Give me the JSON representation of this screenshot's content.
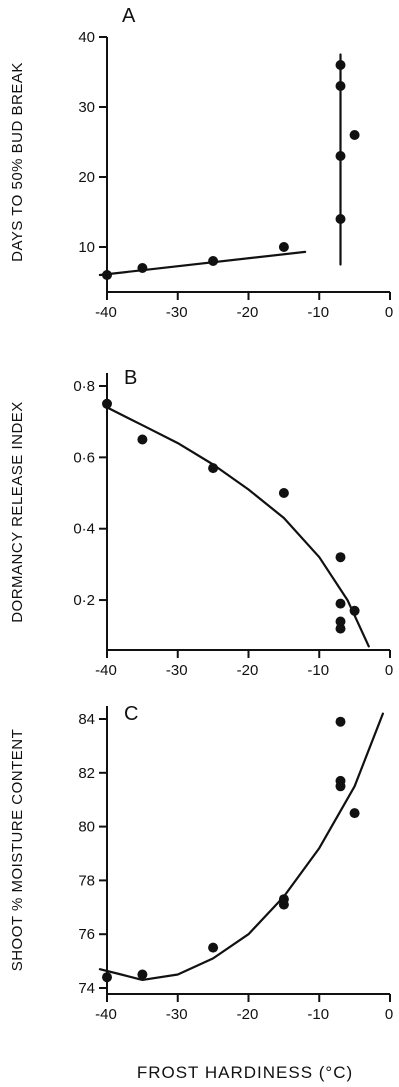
{
  "figure": {
    "xlabel": "FROST HARDINESS (°C)"
  },
  "chart_data": [
    {
      "panel": "A",
      "type": "scatter",
      "xlabel": "",
      "ylabel": "DAYS TO 50% BUD BREAK",
      "xlim": [
        -40,
        0
      ],
      "ylim": [
        5,
        40
      ],
      "xticks": [
        -40,
        -30,
        -20,
        -10,
        0
      ],
      "xtick_labels": [
        "-40",
        "-30",
        "-20",
        "-10",
        "0"
      ],
      "yticks": [
        10,
        20,
        30,
        40
      ],
      "ytick_labels": [
        "10",
        "20",
        "30",
        "40"
      ],
      "points": [
        [
          -40,
          6
        ],
        [
          -35,
          7
        ],
        [
          -25,
          8
        ],
        [
          -15,
          10
        ],
        [
          -7,
          14
        ],
        [
          -7,
          23
        ],
        [
          -7,
          33
        ],
        [
          -7,
          36
        ],
        [
          -5,
          26
        ]
      ],
      "fits": [
        [
          [
            -41,
            6
          ],
          [
            -12,
            9.3
          ]
        ],
        [
          [
            -7,
            7.5
          ],
          [
            -7,
            37.5
          ]
        ]
      ]
    },
    {
      "panel": "B",
      "type": "scatter",
      "xlabel": "",
      "ylabel": "DORMANCY RELEASE INDEX",
      "xlim": [
        -40,
        0
      ],
      "ylim": [
        0.06,
        0.8
      ],
      "xticks": [
        -40,
        -30,
        -20,
        -10,
        0
      ],
      "xtick_labels": [
        "-40",
        "-30",
        "-20",
        "-10",
        "0"
      ],
      "yticks": [
        0.2,
        0.4,
        0.6,
        0.8
      ],
      "ytick_labels": [
        "0·2",
        "0·4",
        "0·6",
        "0·8"
      ],
      "points": [
        [
          -40,
          0.75
        ],
        [
          -35,
          0.65
        ],
        [
          -25,
          0.57
        ],
        [
          -15,
          0.5
        ],
        [
          -7,
          0.32
        ],
        [
          -7,
          0.19
        ],
        [
          -7,
          0.14
        ],
        [
          -7,
          0.12
        ],
        [
          -5,
          0.17
        ]
      ],
      "fits": [
        [
          [
            -40,
            0.74
          ],
          [
            -35,
            0.69
          ],
          [
            -30,
            0.64
          ],
          [
            -25,
            0.58
          ],
          [
            -20,
            0.51
          ],
          [
            -15,
            0.43
          ],
          [
            -10,
            0.32
          ],
          [
            -6,
            0.2
          ],
          [
            -3,
            0.07
          ]
        ]
      ]
    },
    {
      "panel": "C",
      "type": "scatter",
      "xlabel": "",
      "ylabel": "SHOOT % MOISTURE CONTENT",
      "xlim": [
        -40,
        0
      ],
      "ylim": [
        74,
        84
      ],
      "xticks": [
        -40,
        -30,
        -20,
        -10,
        0
      ],
      "xtick_labels": [
        "-40",
        "-30",
        "-20",
        "-10",
        "0"
      ],
      "yticks": [
        74,
        76,
        78,
        80,
        82,
        84
      ],
      "ytick_labels": [
        "74",
        "76",
        "78",
        "80",
        "82",
        "84"
      ],
      "points": [
        [
          -40,
          74.4
        ],
        [
          -35,
          74.5
        ],
        [
          -25,
          75.5
        ],
        [
          -15,
          77.3
        ],
        [
          -15,
          77.1
        ],
        [
          -7,
          81.7
        ],
        [
          -7,
          81.5
        ],
        [
          -7,
          83.9
        ],
        [
          -5,
          80.5
        ]
      ],
      "fits": [
        [
          [
            -41,
            74.7
          ],
          [
            -38,
            74.5
          ],
          [
            -35,
            74.3
          ],
          [
            -30,
            74.5
          ],
          [
            -25,
            75.1
          ],
          [
            -20,
            76.0
          ],
          [
            -15,
            77.4
          ],
          [
            -10,
            79.2
          ],
          [
            -5,
            81.5
          ],
          [
            -1,
            84.2
          ]
        ]
      ]
    }
  ]
}
